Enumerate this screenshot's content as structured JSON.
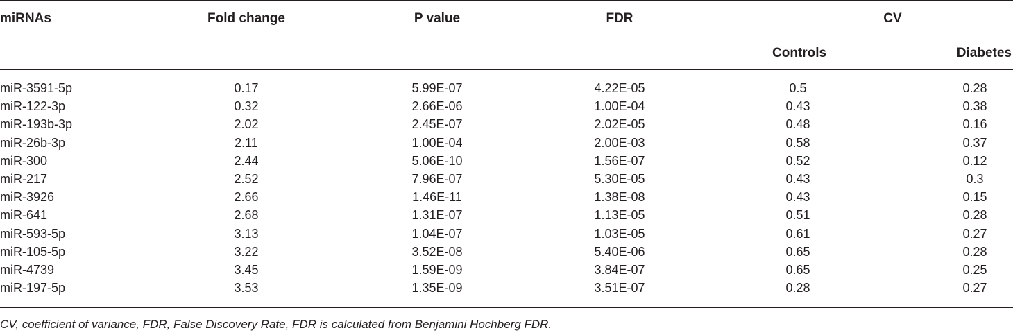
{
  "table": {
    "headers": {
      "mirnas": "miRNAs",
      "fold_change": "Fold change",
      "p_value": "P value",
      "fdr": "FDR",
      "cv": "CV",
      "controls": "Controls",
      "diabetes": "Diabetes"
    },
    "rows": [
      [
        "miR-3591-5p",
        "0.17",
        "5.99E-07",
        "4.22E-05",
        "0.5",
        "0.28"
      ],
      [
        "miR-122-3p",
        "0.32",
        "2.66E-06",
        "1.00E-04",
        "0.43",
        "0.38"
      ],
      [
        "miR-193b-3p",
        "2.02",
        "2.45E-07",
        "2.02E-05",
        "0.48",
        "0.16"
      ],
      [
        "miR-26b-3p",
        "2.11",
        "1.00E-04",
        "2.00E-03",
        "0.58",
        "0.37"
      ],
      [
        "miR-300",
        "2.44",
        "5.06E-10",
        "1.56E-07",
        "0.52",
        "0.12"
      ],
      [
        "miR-217",
        "2.52",
        "7.96E-07",
        "5.30E-05",
        "0.43",
        "0.3"
      ],
      [
        "miR-3926",
        "2.66",
        "1.46E-11",
        "1.38E-08",
        "0.43",
        "0.15"
      ],
      [
        "miR-641",
        "2.68",
        "1.31E-07",
        "1.13E-05",
        "0.51",
        "0.28"
      ],
      [
        "miR-593-5p",
        "3.13",
        "1.04E-07",
        "1.03E-05",
        "0.61",
        "0.27"
      ],
      [
        "miR-105-5p",
        "3.22",
        "3.52E-08",
        "5.40E-06",
        "0.65",
        "0.28"
      ],
      [
        "miR-4739",
        "3.45",
        "1.59E-09",
        "3.84E-07",
        "0.65",
        "0.25"
      ],
      [
        "miR-197-5p",
        "3.53",
        "1.35E-09",
        "3.51E-07",
        "0.28",
        "0.27"
      ]
    ],
    "footnote": "CV, coefficient of variance, FDR, False Discovery Rate, FDR is calculated from Benjamini Hochberg FDR."
  }
}
